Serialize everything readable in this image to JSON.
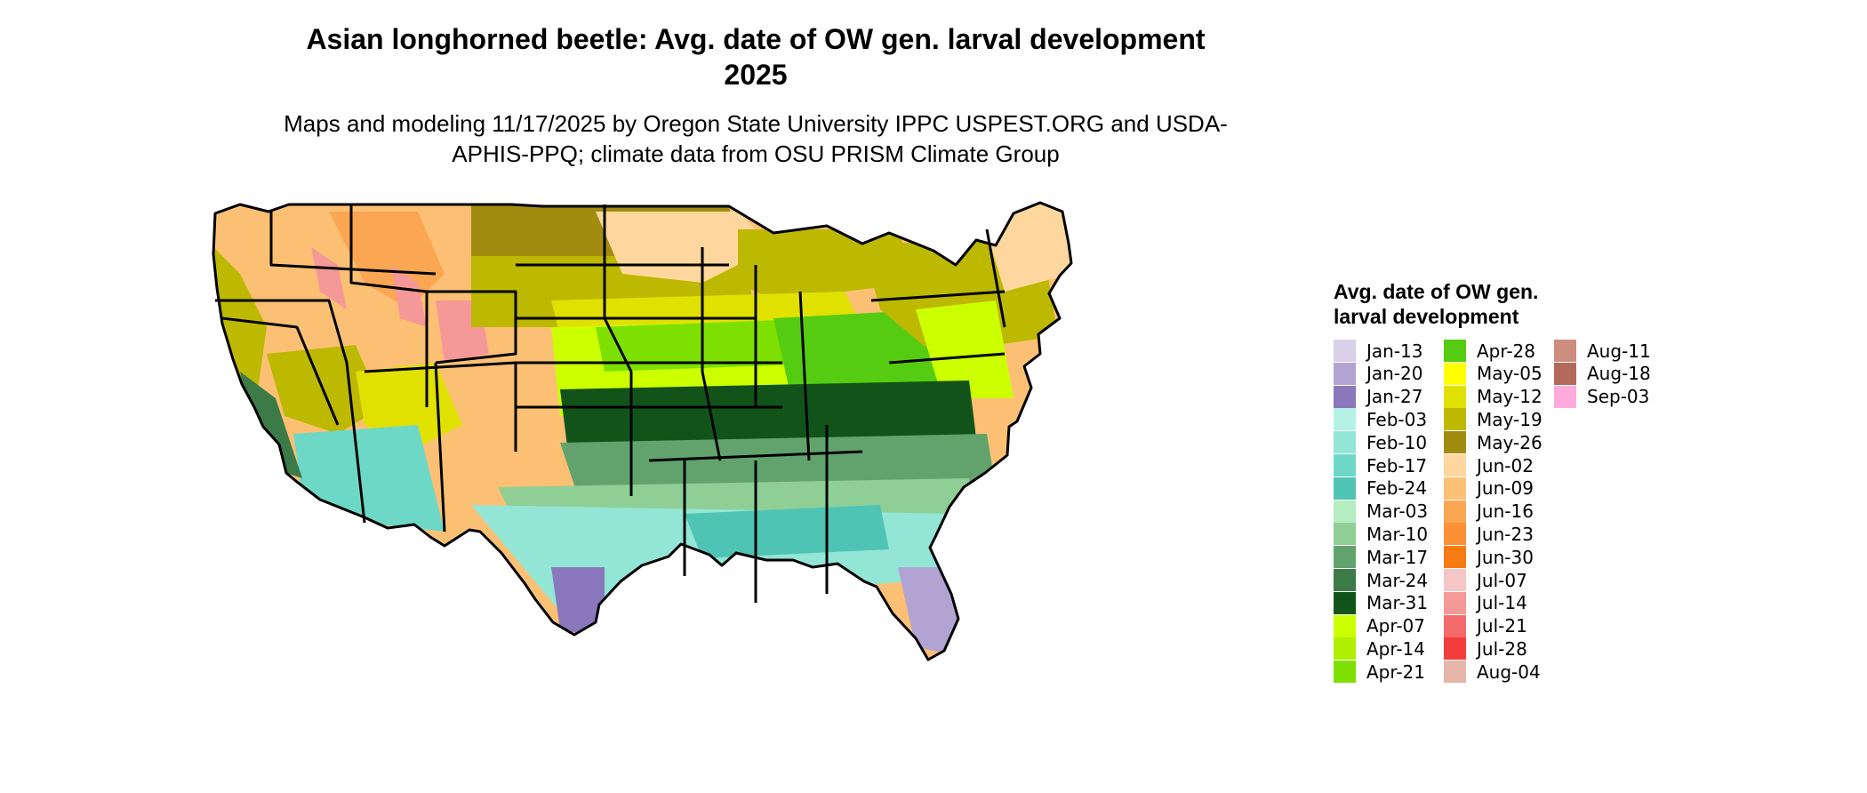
{
  "title": "Asian longhorned beetle: Avg. date of OW gen. larval development",
  "title_line2": "2025",
  "subtitle": "Maps and modeling 11/17/2025 by Oregon State University IPPC USPEST.ORG and USDA-APHIS-PPQ; climate data from OSU PRISM Climate Group",
  "legend": {
    "title": "Avg. date of OW gen. larval development",
    "entries": [
      {
        "label": "Jan-13",
        "color": "#d9d0ea"
      },
      {
        "label": "Jan-20",
        "color": "#b1a4d2"
      },
      {
        "label": "Jan-27",
        "color": "#8a78bd"
      },
      {
        "label": "Feb-03",
        "color": "#b3f2e4"
      },
      {
        "label": "Feb-10",
        "color": "#93e6d5"
      },
      {
        "label": "Feb-17",
        "color": "#6ed8c6"
      },
      {
        "label": "Feb-24",
        "color": "#4fc4b4"
      },
      {
        "label": "Mar-03",
        "color": "#b4eec0"
      },
      {
        "label": "Mar-10",
        "color": "#8fcf96"
      },
      {
        "label": "Mar-17",
        "color": "#62a36d"
      },
      {
        "label": "Mar-24",
        "color": "#3c7a47"
      },
      {
        "label": "Mar-31",
        "color": "#12531a"
      },
      {
        "label": "Apr-07",
        "color": "#ccff00"
      },
      {
        "label": "Apr-14",
        "color": "#aef000"
      },
      {
        "label": "Apr-21",
        "color": "#7ee000"
      },
      {
        "label": "Apr-28",
        "color": "#55cc11"
      },
      {
        "label": "May-05",
        "color": "#ffff00"
      },
      {
        "label": "May-12",
        "color": "#e1e100"
      },
      {
        "label": "May-19",
        "color": "#bdb800"
      },
      {
        "label": "May-26",
        "color": "#a28c10"
      },
      {
        "label": "Jun-02",
        "color": "#fdd79d"
      },
      {
        "label": "Jun-09",
        "color": "#fcc074"
      },
      {
        "label": "Jun-16",
        "color": "#fba652"
      },
      {
        "label": "Jun-23",
        "color": "#fb9036"
      },
      {
        "label": "Jun-30",
        "color": "#f97b14"
      },
      {
        "label": "Jul-07",
        "color": "#f5c6c6"
      },
      {
        "label": "Jul-14",
        "color": "#f59898"
      },
      {
        "label": "Jul-21",
        "color": "#f46a6a"
      },
      {
        "label": "Jul-28",
        "color": "#f43c3c"
      },
      {
        "label": "Aug-04",
        "color": "#e6b6a8"
      },
      {
        "label": "Aug-11",
        "color": "#cd8e7f"
      },
      {
        "label": "Aug-18",
        "color": "#b36a5b"
      },
      {
        "label": "Sep-03",
        "color": "#ffaadd"
      }
    ]
  },
  "map_colors": {
    "outline": "#000000",
    "northwest": "#fcc074",
    "rockies": "#fba652",
    "highlands": "#f59898",
    "great_basin": "#bdb800",
    "plains_north": "#a28c10",
    "plains_mid": "#bdb800",
    "upper_midwest": "#fdd79d",
    "corn_belt": "#e1e100",
    "central": "#ccff00",
    "ohio_valley": "#55cc11",
    "northeast": "#bdb800",
    "new_england": "#fdd79d",
    "midsouth": "#12531a",
    "deep_south": "#62a36d",
    "gulf": "#93e6d5",
    "desert": "#6ed8c6",
    "california_valley": "#3c7a47",
    "south_texas": "#8a78bd",
    "florida": "#b1a4d2"
  }
}
